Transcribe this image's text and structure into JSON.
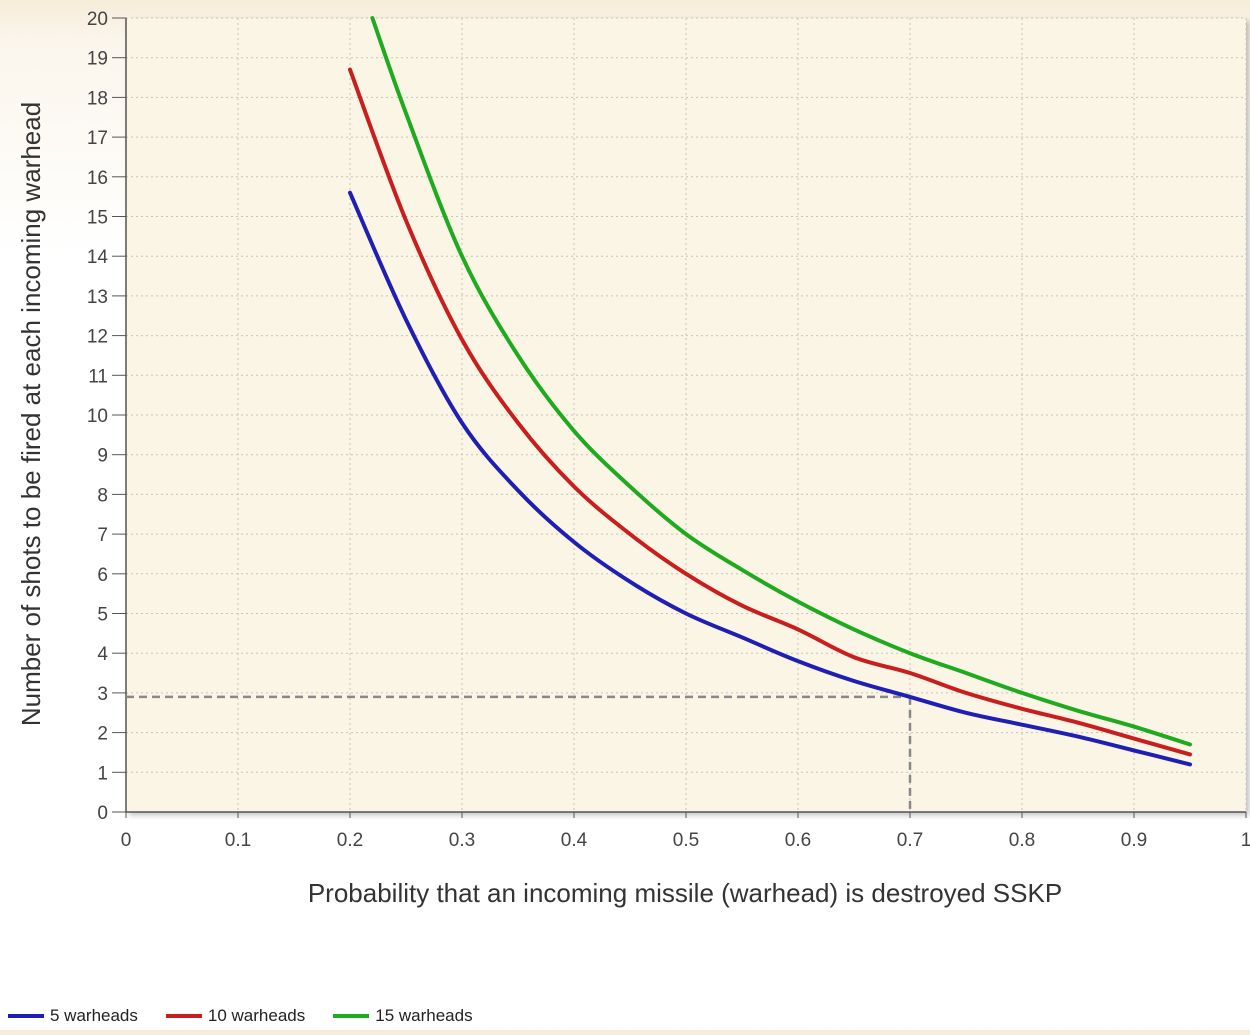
{
  "chart_data": {
    "type": "line",
    "title": "",
    "xlabel": "Probability that an incoming missile (warhead) is destroyed SSKP",
    "ylabel": "Number of shots to be fired at each incoming warhead",
    "xlim": [
      0,
      1
    ],
    "ylim": [
      0,
      20
    ],
    "x_ticks": [
      "0",
      "0.1",
      "0.2",
      "0.3",
      "0.4",
      "0.5",
      "0.6",
      "0.7",
      "0.8",
      "0.9",
      "1"
    ],
    "y_ticks": [
      "0",
      "1",
      "2",
      "3",
      "4",
      "5",
      "6",
      "7",
      "8",
      "9",
      "10",
      "11",
      "12",
      "13",
      "14",
      "15",
      "16",
      "17",
      "18",
      "19",
      "20"
    ],
    "grid": true,
    "legend_position": "bottom-left",
    "x": [
      0.2,
      0.25,
      0.3,
      0.35,
      0.4,
      0.45,
      0.5,
      0.55,
      0.6,
      0.65,
      0.7,
      0.75,
      0.8,
      0.85,
      0.9,
      0.95
    ],
    "series": [
      {
        "name": "5 warheads",
        "color": "#1f1fb4",
        "values": [
          15.6,
          12.4,
          9.8,
          8.1,
          6.8,
          5.8,
          5.0,
          4.4,
          3.8,
          3.3,
          2.9,
          2.5,
          2.2,
          1.9,
          1.55,
          1.2
        ]
      },
      {
        "name": "10 warheads",
        "color": "#c81e1e",
        "values": [
          18.7,
          14.9,
          11.9,
          9.8,
          8.2,
          7.0,
          6.0,
          5.2,
          4.6,
          3.9,
          3.5,
          3.0,
          2.6,
          2.25,
          1.85,
          1.45
        ]
      },
      {
        "name": "15 warheads",
        "color": "#1faa1f",
        "x": [
          0.22,
          0.25,
          0.3,
          0.35,
          0.4,
          0.45,
          0.5,
          0.55,
          0.6,
          0.65,
          0.7,
          0.75,
          0.8,
          0.85,
          0.9,
          0.95
        ],
        "values": [
          20.0,
          17.6,
          14.0,
          11.5,
          9.6,
          8.2,
          7.0,
          6.1,
          5.3,
          4.6,
          4.0,
          3.5,
          3.0,
          2.55,
          2.15,
          1.7
        ]
      }
    ],
    "reference_point": {
      "x": 0.7,
      "y": 2.9,
      "style": "dashed"
    }
  }
}
